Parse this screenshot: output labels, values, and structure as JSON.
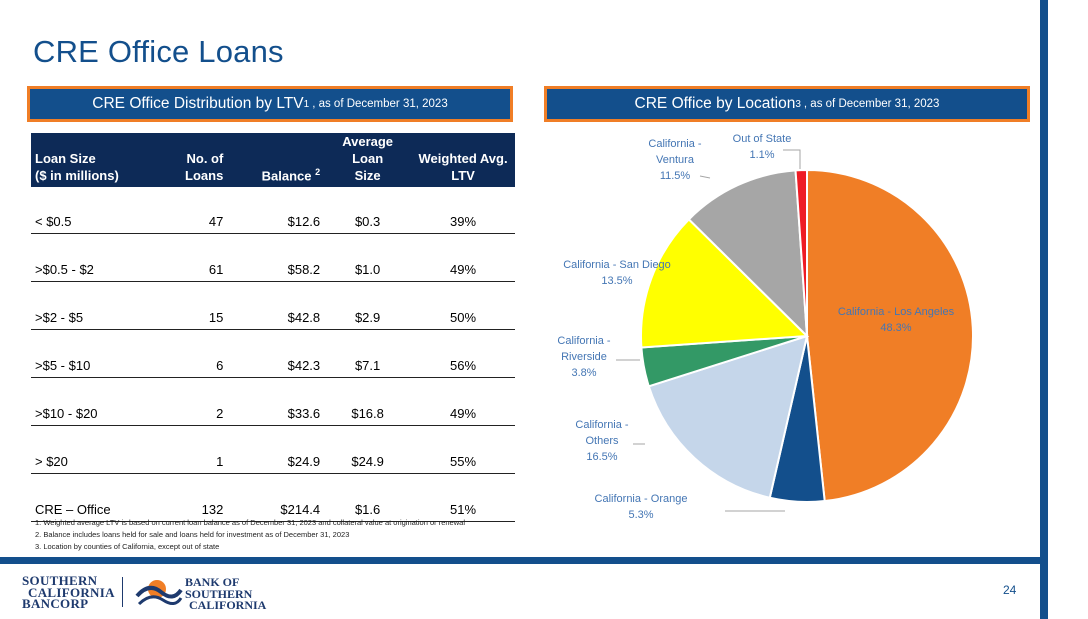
{
  "page_title": "CRE Office Loans",
  "ltv_section": {
    "header_main": "CRE Office Distribution by LTV",
    "header_sup": "1",
    "header_sub": ", as of December 31, 2023"
  },
  "location_section": {
    "header_main": "CRE Office by Location ",
    "header_sup": "3",
    "header_sub": ", as of December 31, 2023"
  },
  "table": {
    "headers": [
      {
        "line1": "Loan Size",
        "line2": "($ in millions)",
        "sup": ""
      },
      {
        "line1": "No. of",
        "line2": "Loans",
        "sup": ""
      },
      {
        "line1": "",
        "line2": "Balance ",
        "sup": "2"
      },
      {
        "line1": "Average Loan",
        "line2": "Size",
        "sup": ""
      },
      {
        "line1": "Weighted Avg.",
        "line2": "LTV",
        "sup": ""
      }
    ],
    "rows": [
      [
        "< $0.5",
        "47",
        "$12.6",
        "$0.3",
        "39%"
      ],
      [
        ">$0.5 - $2",
        "61",
        "$58.2",
        "$1.0",
        "49%"
      ],
      [
        ">$2 - $5",
        "15",
        "$42.8",
        "$2.9",
        "50%"
      ],
      [
        ">$5 - $10",
        "6",
        "$42.3",
        "$7.1",
        "56%"
      ],
      [
        ">$10 - $20",
        "2",
        "$33.6",
        "$16.8",
        "49%"
      ],
      [
        "> $20",
        "1",
        "$24.9",
        "$24.9",
        "55%"
      ],
      [
        "CRE – Office",
        "132",
        "$214.4",
        "$1.6",
        "51%"
      ]
    ]
  },
  "footnotes": [
    "1.  Weighted average LTV is based on current loan balance as of December 31, 2023 and collateral value at origination or renewal",
    "2.  Balance includes loans held for sale and loans held for investment as of December 31, 2023",
    "3.  Location by counties of California, except out of state"
  ],
  "chart_data": {
    "type": "pie",
    "title": "",
    "start_angle_deg": 0,
    "direction": "clockwise",
    "slices": [
      {
        "label_lines": [
          "California - Los Angeles"
        ],
        "value": 48.3,
        "value_label": "48.3%",
        "color": "#f07e26"
      },
      {
        "label_lines": [
          "California - Orange"
        ],
        "value": 5.3,
        "value_label": "5.3%",
        "color": "#134f8c"
      },
      {
        "label_lines": [
          "California -",
          "Others"
        ],
        "value": 16.5,
        "value_label": "16.5%",
        "color": "#c5d6ea"
      },
      {
        "label_lines": [
          "California -",
          "Riverside"
        ],
        "value": 3.8,
        "value_label": "3.8%",
        "color": "#339966"
      },
      {
        "label_lines": [
          "California - San Diego"
        ],
        "value": 13.5,
        "value_label": "13.5%",
        "color": "#ffff00"
      },
      {
        "label_lines": [
          "California -",
          "Ventura"
        ],
        "value": 11.5,
        "value_label": "11.5%",
        "color": "#a6a6a6"
      },
      {
        "label_lines": [
          "Out of State"
        ],
        "value": 1.1,
        "value_label": "1.1%",
        "color": "#ee1c25"
      }
    ]
  },
  "logos": {
    "parent": [
      "SOUTHERN",
      "CALIFORNIA",
      "BANCORP"
    ],
    "bank": [
      "BANK OF",
      "SOUTHERN",
      "CALIFORNIA"
    ]
  },
  "page_number": "24",
  "colors": {
    "brand_blue": "#134f8c",
    "accent_orange": "#f07e26",
    "table_header": "#0d2a57"
  }
}
